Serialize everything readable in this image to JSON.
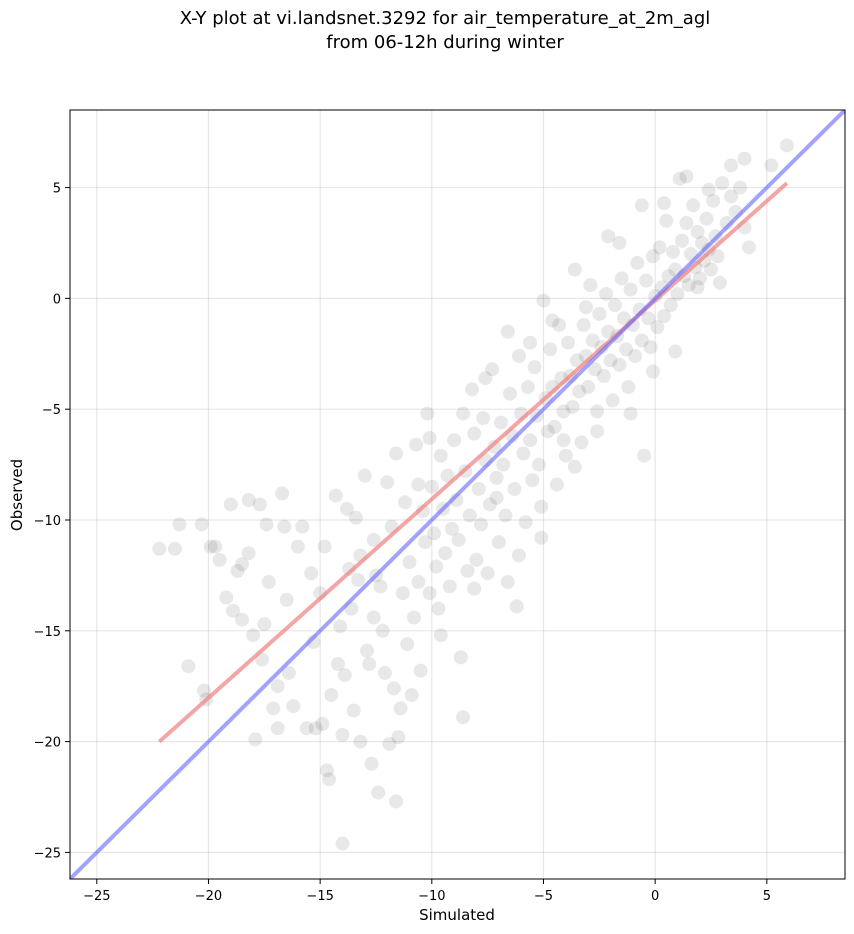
{
  "chart_data": {
    "type": "scatter",
    "title": "X-Y plot at vi.landsnet.3292 for air_temperature_at_2m_agl",
    "subtitle": "from 06-12h during winter",
    "xlabel": "Simulated",
    "ylabel": "Observed",
    "xlim": [
      -26.2,
      8.5
    ],
    "ylim": [
      -26.2,
      8.5
    ],
    "xticks": [
      -25,
      -20,
      -15,
      -10,
      -5,
      0,
      5
    ],
    "yticks": [
      -25,
      -20,
      -15,
      -10,
      -5,
      0,
      5
    ],
    "x_tick_labels": [
      "−25",
      "−20",
      "−15",
      "−10",
      "−5",
      "0",
      "5"
    ],
    "y_tick_labels": [
      "−25",
      "−20",
      "−15",
      "−10",
      "−5",
      "0",
      "5"
    ],
    "grid": true,
    "point_color": "#000000",
    "point_alpha": 0.09,
    "regression_line": {
      "color": "#f08080",
      "x": [
        -22.2,
        5.9
      ],
      "y": [
        -20.0,
        5.2
      ]
    },
    "identity_line": {
      "color": "#6666ff",
      "x": [
        -26.2,
        8.5
      ],
      "y": [
        -26.2,
        8.5
      ]
    },
    "points": [
      [
        -22.2,
        -11.3
      ],
      [
        -21.5,
        -11.3
      ],
      [
        -21.3,
        -10.2
      ],
      [
        -20.9,
        -16.6
      ],
      [
        -20.3,
        -10.2
      ],
      [
        -20.2,
        -17.7
      ],
      [
        -19.9,
        -11.2
      ],
      [
        -19.7,
        -11.2
      ],
      [
        -19.5,
        -11.8
      ],
      [
        -19.2,
        -13.5
      ],
      [
        -19.0,
        -9.3
      ],
      [
        -18.7,
        -12.3
      ],
      [
        -18.5,
        -14.5
      ],
      [
        -18.5,
        -12.0
      ],
      [
        -18.2,
        -9.1
      ],
      [
        -18.2,
        -11.5
      ],
      [
        -18.0,
        -15.2
      ],
      [
        -17.9,
        -19.9
      ],
      [
        -17.7,
        -9.3
      ],
      [
        -17.5,
        -14.7
      ],
      [
        -17.4,
        -10.2
      ],
      [
        -17.3,
        -12.8
      ],
      [
        -17.1,
        -18.5
      ],
      [
        -16.9,
        -17.5
      ],
      [
        -16.9,
        -19.4
      ],
      [
        -16.7,
        -8.8
      ],
      [
        -16.6,
        -10.3
      ],
      [
        -16.4,
        -16.9
      ],
      [
        -16.2,
        -18.4
      ],
      [
        -16.0,
        -11.2
      ],
      [
        -15.8,
        -10.3
      ],
      [
        -15.6,
        -19.4
      ],
      [
        -15.4,
        -12.4
      ],
      [
        -15.2,
        -19.4
      ],
      [
        -15.0,
        -13.3
      ],
      [
        -14.9,
        -19.2
      ],
      [
        -14.8,
        -11.2
      ],
      [
        -14.7,
        -21.3
      ],
      [
        -14.6,
        -21.7
      ],
      [
        -14.5,
        -17.9
      ],
      [
        -14.3,
        -8.9
      ],
      [
        -14.2,
        -16.5
      ],
      [
        -14.0,
        -19.7
      ],
      [
        -14.0,
        -24.6
      ],
      [
        -13.9,
        -17.0
      ],
      [
        -13.7,
        -12.2
      ],
      [
        -13.6,
        -14.0
      ],
      [
        -13.5,
        -18.6
      ],
      [
        -13.4,
        -9.9
      ],
      [
        -13.3,
        -12.7
      ],
      [
        -13.2,
        -20.0
      ],
      [
        -13.0,
        -8.0
      ],
      [
        -12.9,
        -15.9
      ],
      [
        -12.8,
        -16.5
      ],
      [
        -12.7,
        -21.0
      ],
      [
        -12.6,
        -10.9
      ],
      [
        -12.5,
        -12.5
      ],
      [
        -12.4,
        -22.3
      ],
      [
        -12.3,
        -13.0
      ],
      [
        -12.2,
        -15.0
      ],
      [
        -12.0,
        -8.3
      ],
      [
        -11.9,
        -20.1
      ],
      [
        -11.8,
        -10.3
      ],
      [
        -11.7,
        -17.6
      ],
      [
        -11.6,
        -22.7
      ],
      [
        -11.5,
        -19.8
      ],
      [
        -11.4,
        -18.5
      ],
      [
        -11.3,
        -13.3
      ],
      [
        -11.2,
        -9.2
      ],
      [
        -11.0,
        -11.9
      ],
      [
        -10.9,
        -17.9
      ],
      [
        -10.8,
        -14.4
      ],
      [
        -10.7,
        -6.6
      ],
      [
        -10.6,
        -12.8
      ],
      [
        -10.5,
        -16.8
      ],
      [
        -10.4,
        -9.6
      ],
      [
        -10.3,
        -11.0
      ],
      [
        -10.2,
        -5.2
      ],
      [
        -10.1,
        -13.3
      ],
      [
        -10.0,
        -8.5
      ],
      [
        -9.9,
        -10.6
      ],
      [
        -9.8,
        -12.1
      ],
      [
        -9.7,
        -14.0
      ],
      [
        -9.6,
        -7.1
      ],
      [
        -9.5,
        -9.5
      ],
      [
        -9.4,
        -11.5
      ],
      [
        -9.3,
        -8.0
      ],
      [
        -9.2,
        -13.0
      ],
      [
        -9.0,
        -6.4
      ],
      [
        -8.9,
        -9.1
      ],
      [
        -8.8,
        -10.9
      ],
      [
        -8.7,
        -16.2
      ],
      [
        -8.6,
        -18.9
      ],
      [
        -8.5,
        -7.8
      ],
      [
        -8.4,
        -12.3
      ],
      [
        -8.3,
        -9.8
      ],
      [
        -8.2,
        -4.1
      ],
      [
        -8.1,
        -6.1
      ],
      [
        -8.0,
        -11.8
      ],
      [
        -7.9,
        -8.6
      ],
      [
        -7.8,
        -10.2
      ],
      [
        -7.7,
        -5.4
      ],
      [
        -7.6,
        -7.3
      ],
      [
        -7.5,
        -12.4
      ],
      [
        -7.4,
        -9.3
      ],
      [
        -7.3,
        -3.2
      ],
      [
        -7.2,
        -6.7
      ],
      [
        -7.1,
        -8.1
      ],
      [
        -7.0,
        -11.0
      ],
      [
        -6.9,
        -5.6
      ],
      [
        -6.8,
        -7.5
      ],
      [
        -6.7,
        -9.8
      ],
      [
        -6.6,
        -12.8
      ],
      [
        -6.5,
        -4.3
      ],
      [
        -6.4,
        -6.2
      ],
      [
        -6.3,
        -8.6
      ],
      [
        -6.2,
        -13.9
      ],
      [
        -6.1,
        -2.6
      ],
      [
        -6.0,
        -5.2
      ],
      [
        -5.9,
        -7.0
      ],
      [
        -5.8,
        -10.1
      ],
      [
        -5.7,
        -4.0
      ],
      [
        -5.6,
        -6.4
      ],
      [
        -5.5,
        -8.2
      ],
      [
        -5.4,
        -3.1
      ],
      [
        -5.3,
        -5.3
      ],
      [
        -5.2,
        -7.5
      ],
      [
        -5.1,
        -10.8
      ],
      [
        -5.0,
        -0.1
      ],
      [
        -4.9,
        -4.5
      ],
      [
        -4.8,
        -6.0
      ],
      [
        -4.7,
        -2.3
      ],
      [
        -4.6,
        -4.0
      ],
      [
        -4.5,
        -5.8
      ],
      [
        -4.4,
        -8.4
      ],
      [
        -4.3,
        -1.2
      ],
      [
        -4.2,
        -3.6
      ],
      [
        -4.1,
        -5.1
      ],
      [
        -4.0,
        -7.1
      ],
      [
        -3.9,
        -2.0
      ],
      [
        -3.8,
        -3.5
      ],
      [
        -3.7,
        -4.9
      ],
      [
        -3.6,
        1.3
      ],
      [
        -3.5,
        -2.8
      ],
      [
        -3.4,
        -4.2
      ],
      [
        -3.3,
        -6.5
      ],
      [
        -3.2,
        -1.2
      ],
      [
        -3.1,
        -2.6
      ],
      [
        -3.0,
        -4.0
      ],
      [
        -2.9,
        0.6
      ],
      [
        -2.8,
        -1.9
      ],
      [
        -2.7,
        -3.2
      ],
      [
        -2.6,
        -5.1
      ],
      [
        -2.5,
        -0.7
      ],
      [
        -2.4,
        -2.2
      ],
      [
        -2.3,
        -3.5
      ],
      [
        -2.2,
        0.2
      ],
      [
        -2.1,
        -1.5
      ],
      [
        -2.0,
        -2.8
      ],
      [
        -1.9,
        -4.6
      ],
      [
        -1.8,
        -0.3
      ],
      [
        -1.7,
        -1.7
      ],
      [
        -1.6,
        -3.0
      ],
      [
        -1.5,
        0.9
      ],
      [
        -1.4,
        -0.9
      ],
      [
        -1.3,
        -2.3
      ],
      [
        -1.2,
        -4.0
      ],
      [
        -1.1,
        0.4
      ],
      [
        -1.0,
        -1.2
      ],
      [
        -0.9,
        -2.6
      ],
      [
        -0.8,
        1.6
      ],
      [
        -0.7,
        -0.5
      ],
      [
        -0.6,
        -1.9
      ],
      [
        -0.5,
        -7.1
      ],
      [
        -0.4,
        0.8
      ],
      [
        -0.3,
        -0.9
      ],
      [
        -0.2,
        -2.2
      ],
      [
        -0.1,
        1.9
      ],
      [
        0.0,
        0.1
      ],
      [
        0.1,
        -1.3
      ],
      [
        0.2,
        2.3
      ],
      [
        0.3,
        0.5
      ],
      [
        0.4,
        -0.8
      ],
      [
        0.5,
        3.5
      ],
      [
        0.6,
        1.0
      ],
      [
        0.7,
        -0.3
      ],
      [
        0.8,
        2.1
      ],
      [
        0.9,
        1.3
      ],
      [
        1.0,
        0.2
      ],
      [
        1.1,
        5.4
      ],
      [
        1.2,
        2.6
      ],
      [
        1.3,
        1.0
      ],
      [
        1.4,
        3.4
      ],
      [
        1.5,
        0.6
      ],
      [
        1.6,
        2.0
      ],
      [
        1.7,
        4.2
      ],
      [
        1.8,
        1.4
      ],
      [
        1.9,
        3.0
      ],
      [
        2.0,
        0.9
      ],
      [
        2.1,
        2.5
      ],
      [
        2.2,
        1.7
      ],
      [
        2.3,
        3.6
      ],
      [
        2.4,
        2.2
      ],
      [
        2.5,
        1.3
      ],
      [
        2.6,
        4.4
      ],
      [
        2.7,
        2.8
      ],
      [
        2.8,
        1.9
      ],
      [
        3.0,
        5.2
      ],
      [
        3.2,
        3.4
      ],
      [
        3.4,
        4.6
      ],
      [
        3.6,
        3.9
      ],
      [
        3.8,
        5.0
      ],
      [
        4.0,
        3.2
      ],
      [
        4.0,
        6.3
      ],
      [
        4.2,
        2.3
      ],
      [
        5.2,
        6.0
      ],
      [
        5.9,
        6.9
      ],
      [
        -20.1,
        -18.1
      ],
      [
        -18.9,
        -14.1
      ],
      [
        -17.6,
        -16.3
      ],
      [
        -16.5,
        -13.6
      ],
      [
        -15.3,
        -15.5
      ],
      [
        -14.1,
        -14.8
      ],
      [
        -13.8,
        -9.5
      ],
      [
        -13.2,
        -11.6
      ],
      [
        -12.6,
        -14.4
      ],
      [
        -12.1,
        -16.9
      ],
      [
        -11.6,
        -7.0
      ],
      [
        -11.1,
        -15.6
      ],
      [
        -10.6,
        -8.4
      ],
      [
        -10.1,
        -6.3
      ],
      [
        -9.6,
        -15.2
      ],
      [
        -9.1,
        -10.4
      ],
      [
        -8.6,
        -5.2
      ],
      [
        -8.1,
        -13.1
      ],
      [
        -7.6,
        -3.6
      ],
      [
        -7.1,
        -9.0
      ],
      [
        -6.6,
        -1.5
      ],
      [
        -6.1,
        -11.6
      ],
      [
        -5.6,
        -2.0
      ],
      [
        -5.1,
        -9.4
      ],
      [
        -4.6,
        -1.0
      ],
      [
        -4.1,
        -6.4
      ],
      [
        -3.6,
        -7.6
      ],
      [
        -3.1,
        -0.4
      ],
      [
        -2.6,
        -6.0
      ],
      [
        -2.1,
        2.8
      ],
      [
        -1.6,
        2.5
      ],
      [
        -1.1,
        -5.2
      ],
      [
        -0.6,
        4.2
      ],
      [
        -0.1,
        -3.3
      ],
      [
        0.4,
        4.3
      ],
      [
        0.9,
        -2.4
      ],
      [
        1.4,
        5.5
      ],
      [
        1.9,
        0.5
      ],
      [
        2.4,
        4.9
      ],
      [
        2.9,
        0.7
      ],
      [
        3.4,
        6.0
      ]
    ]
  }
}
